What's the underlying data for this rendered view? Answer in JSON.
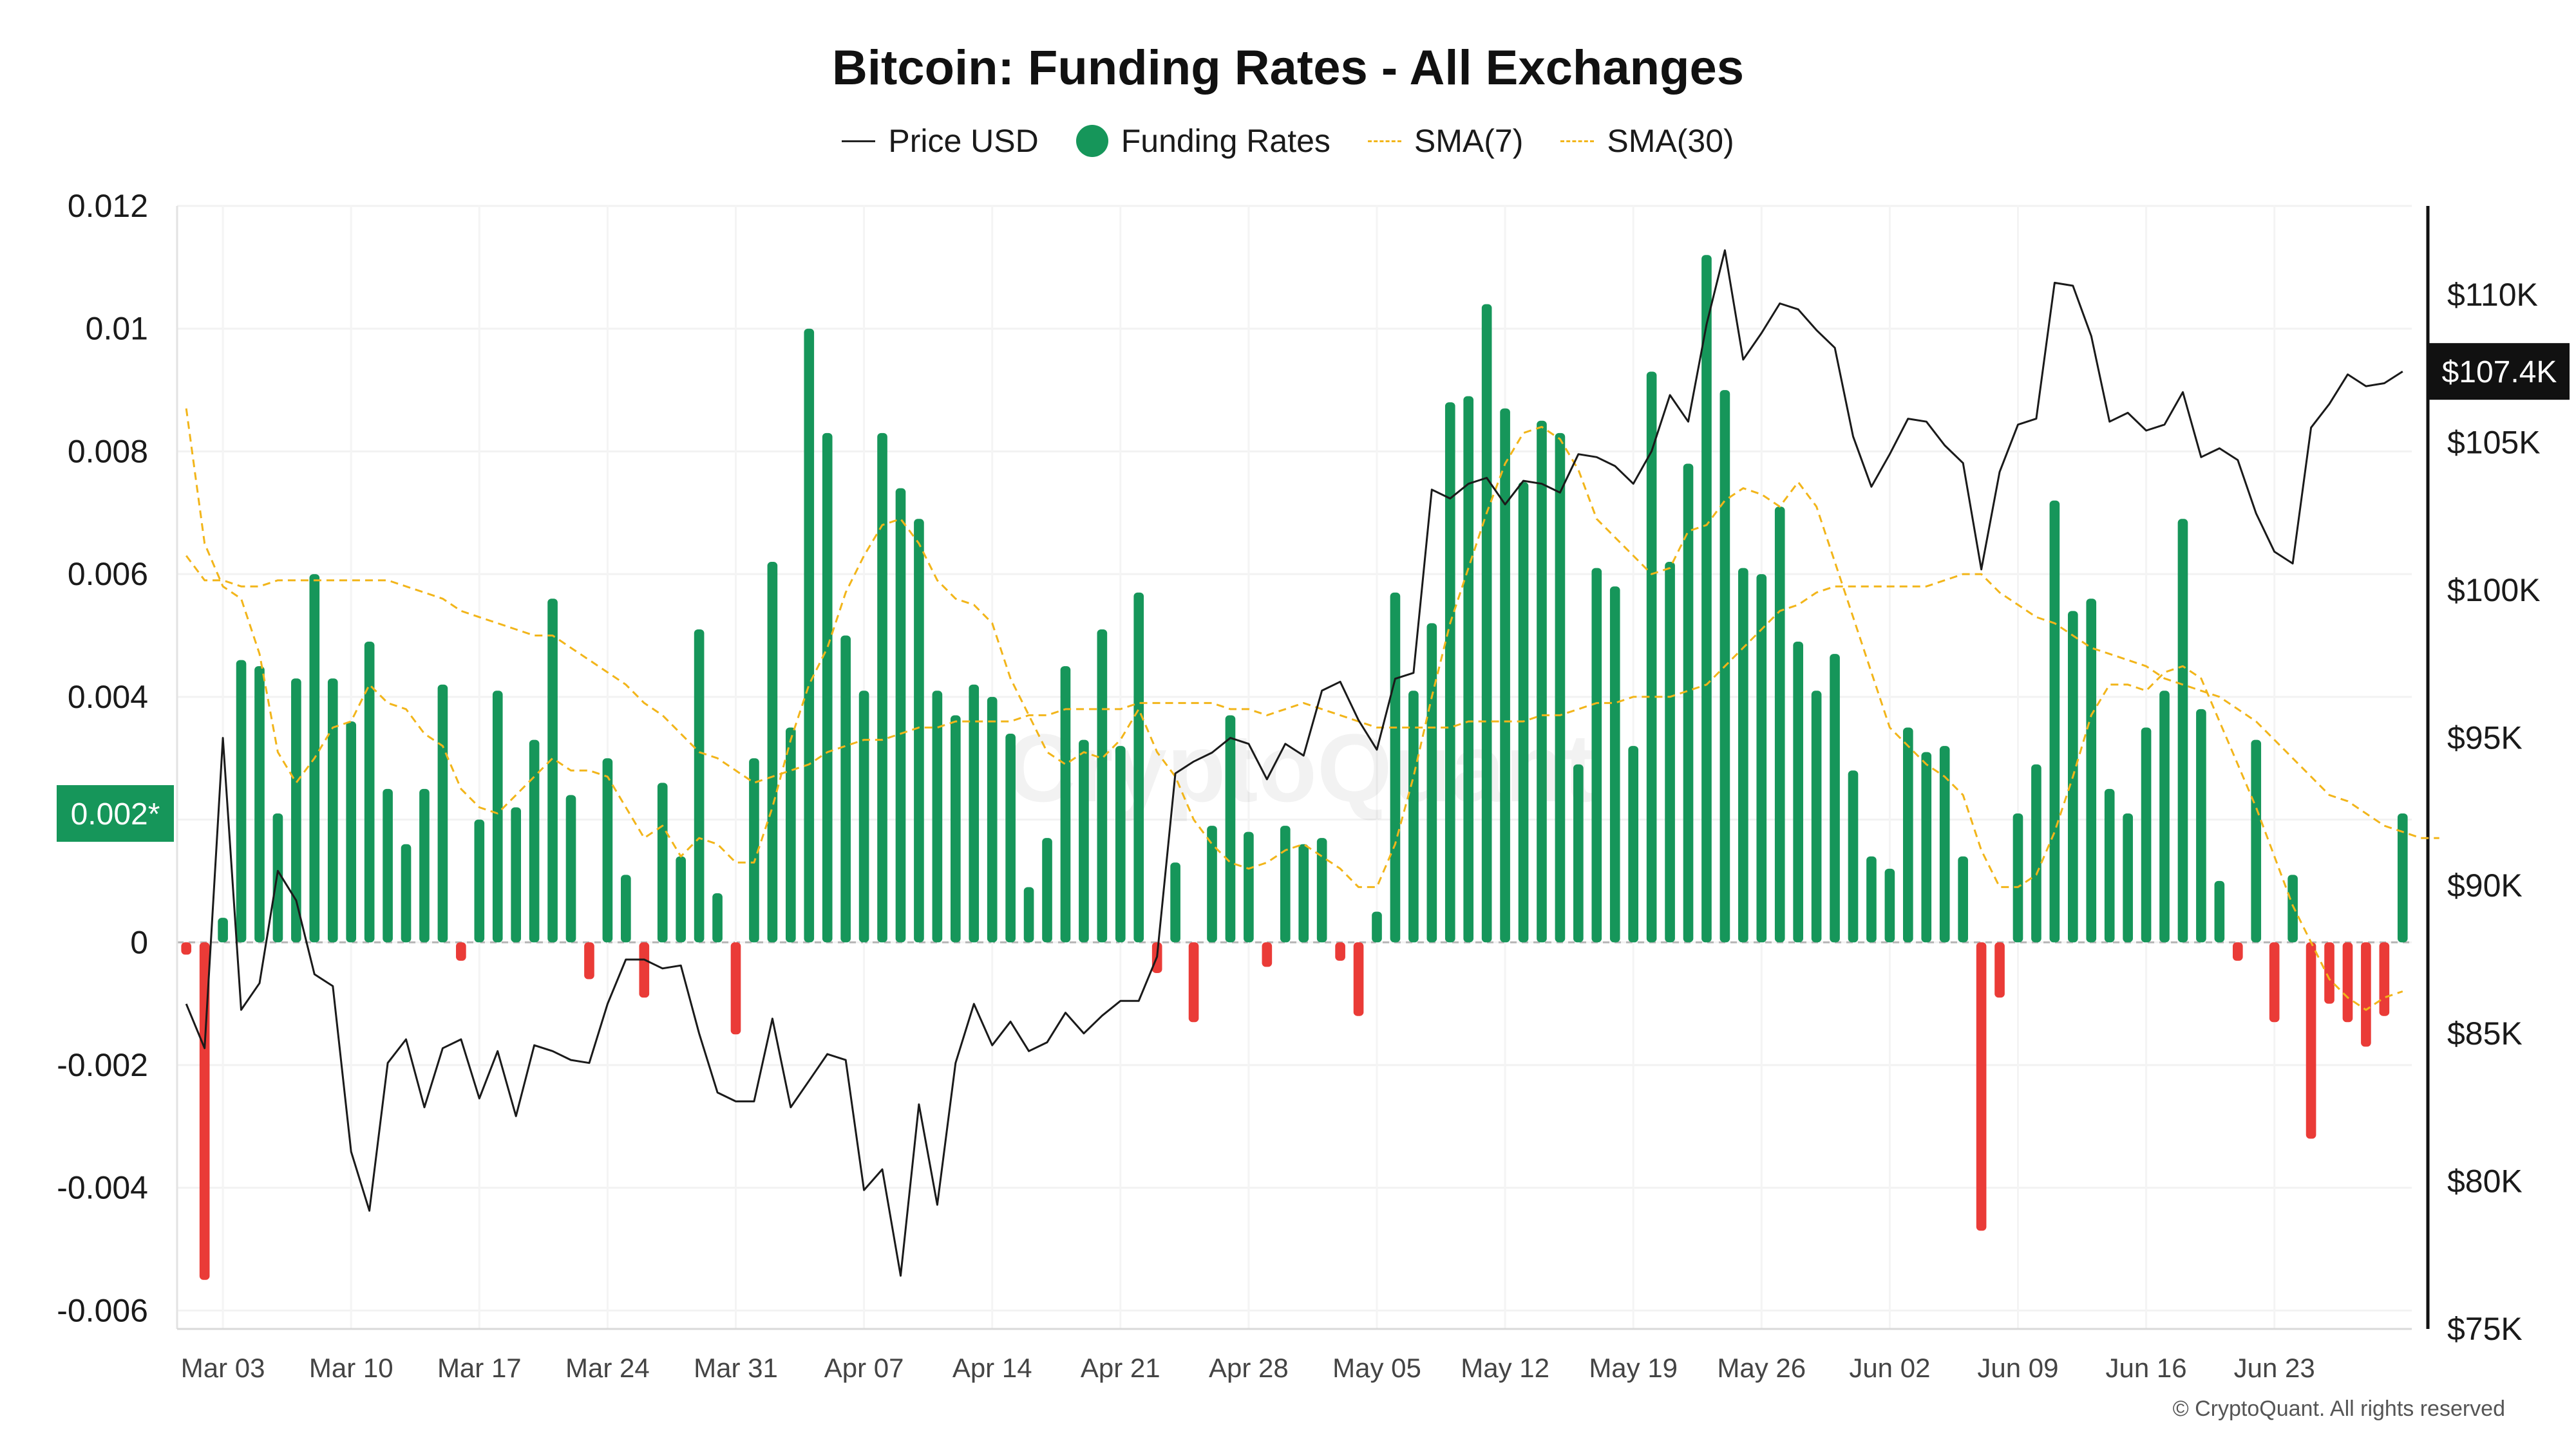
{
  "chart_data": {
    "type": "bar",
    "title": "Bitcoin: Funding Rates - All Exchanges",
    "legend": [
      {
        "name": "Price USD",
        "style": "line",
        "color": "#222222"
      },
      {
        "name": "Funding Rates",
        "style": "dot",
        "color": "#16965a"
      },
      {
        "name": "SMA(7)",
        "style": "dash",
        "color": "#f2b51a"
      },
      {
        "name": "SMA(30)",
        "style": "dash",
        "color": "#f2b51a"
      }
    ],
    "x_ticks": [
      "Mar 03",
      "Mar 10",
      "Mar 17",
      "Mar 24",
      "Mar 31",
      "Apr 07",
      "Apr 14",
      "Apr 21",
      "Apr 28",
      "May 05",
      "May 12",
      "May 19",
      "May 26",
      "Jun 02",
      "Jun 09",
      "Jun 16",
      "Jun 23"
    ],
    "y_left": {
      "ticks": [
        "0.012",
        "0.01",
        "0.008",
        "0.006",
        "0.004",
        "0.002*",
        "0",
        "-0.002",
        "-0.004",
        "-0.006"
      ],
      "range": [
        -0.0063,
        0.012
      ]
    },
    "y_right": {
      "ticks": [
        "$110K",
        "$105K",
        "$100K",
        "$95K",
        "$90K",
        "$85K",
        "$80K",
        "$75K"
      ],
      "range": [
        75000,
        113000
      ]
    },
    "current_price_label": "$107.4K",
    "current_funding_label": "0.002*",
    "day_start": "Mar 01",
    "funding_rates": [
      -0.0002,
      -0.0055,
      0.0004,
      0.0046,
      0.0045,
      0.0021,
      0.0043,
      0.006,
      0.0043,
      0.0036,
      0.0049,
      0.0025,
      0.0016,
      0.0025,
      0.0042,
      -0.0003,
      0.002,
      0.0041,
      0.0022,
      0.0033,
      0.0056,
      0.0024,
      -0.0006,
      0.003,
      0.0011,
      -0.0009,
      0.0026,
      0.0014,
      0.0051,
      0.0008,
      -0.0015,
      0.003,
      0.0062,
      0.0035,
      0.01,
      0.0083,
      0.005,
      0.0041,
      0.0083,
      0.0074,
      0.0069,
      0.0041,
      0.0037,
      0.0042,
      0.004,
      0.0034,
      0.0009,
      0.0017,
      0.0045,
      0.0033,
      0.0051,
      0.0032,
      0.0057,
      -0.0005,
      0.0013,
      -0.0013,
      0.0019,
      0.0037,
      0.0018,
      -0.0004,
      0.0019,
      0.0016,
      0.0017,
      -0.0003,
      -0.0012,
      0.0005,
      0.0057,
      0.0041,
      0.0052,
      0.0088,
      0.0089,
      0.0104,
      0.0087,
      0.0075,
      0.0085,
      0.0083,
      0.0029,
      0.0061,
      0.0058,
      0.0032,
      0.0093,
      0.0062,
      0.0078,
      0.0112,
      0.009,
      0.0061,
      0.006,
      0.0071,
      0.0049,
      0.0041,
      0.0047,
      0.0028,
      0.0014,
      0.0012,
      0.0035,
      0.0031,
      0.0032,
      0.0014,
      -0.0047,
      -0.0009,
      0.0021,
      0.0029,
      0.0072,
      0.0054,
      0.0056,
      0.0025,
      0.0021,
      0.0035,
      0.0041,
      0.0069,
      0.0038,
      0.001,
      -0.0003,
      0.0033,
      -0.0013,
      0.0011,
      -0.0032,
      -0.001,
      -0.0013,
      -0.0017,
      -0.0012,
      0.0021
    ],
    "price_usd": [
      86000,
      84500,
      95000,
      85800,
      86700,
      90500,
      89500,
      87000,
      86600,
      81000,
      79000,
      84000,
      84800,
      82500,
      84500,
      84800,
      82800,
      84400,
      82200,
      84600,
      84400,
      84100,
      84000,
      86000,
      87500,
      87500,
      87200,
      87300,
      85000,
      83000,
      82700,
      82700,
      85500,
      82500,
      83400,
      84300,
      84100,
      79700,
      80400,
      76800,
      82600,
      79200,
      84000,
      86000,
      84600,
      85400,
      84400,
      84700,
      85700,
      85000,
      85600,
      86100,
      86100,
      87600,
      93800,
      94200,
      94500,
      95000,
      94800,
      93600,
      94800,
      94400,
      96600,
      96900,
      95600,
      94600,
      97000,
      97200,
      103400,
      103100,
      103600,
      103800,
      102900,
      103700,
      103600,
      103300,
      104600,
      104500,
      104200,
      103600,
      104700,
      106600,
      105700,
      109000,
      111500,
      107800,
      108700,
      109700,
      109500,
      108800,
      108200,
      105200,
      103500,
      104600,
      105800,
      105700,
      104900,
      104300,
      100700,
      104000,
      105600,
      105800,
      110400,
      110300,
      108600,
      105700,
      106000,
      105400,
      105600,
      106700,
      104500,
      104800,
      104400,
      102600,
      101300,
      100900,
      105500,
      106300,
      107300,
      106900,
      107000,
      107400
    ],
    "sma7": [
      0.0087,
      0.0065,
      0.0058,
      0.0056,
      0.0047,
      0.0031,
      0.0026,
      0.003,
      0.0035,
      0.0036,
      0.0042,
      0.0039,
      0.0038,
      0.0034,
      0.0032,
      0.0025,
      0.0022,
      0.0021,
      0.0024,
      0.0027,
      0.003,
      0.0028,
      0.0028,
      0.0027,
      0.0022,
      0.0017,
      0.0019,
      0.0014,
      0.0017,
      0.0016,
      0.0013,
      0.0013,
      0.0022,
      0.0033,
      0.0042,
      0.0048,
      0.0057,
      0.0063,
      0.0068,
      0.0069,
      0.0065,
      0.0059,
      0.0056,
      0.0055,
      0.0052,
      0.0043,
      0.0037,
      0.0031,
      0.0029,
      0.0031,
      0.003,
      0.0033,
      0.0038,
      0.0031,
      0.0027,
      0.002,
      0.0016,
      0.0013,
      0.0012,
      0.0013,
      0.0015,
      0.0016,
      0.0014,
      0.0012,
      0.0009,
      0.0009,
      0.0016,
      0.0027,
      0.004,
      0.0052,
      0.0061,
      0.007,
      0.0078,
      0.0083,
      0.0084,
      0.0082,
      0.0077,
      0.0069,
      0.0066,
      0.0063,
      0.006,
      0.0061,
      0.0067,
      0.0068,
      0.0072,
      0.0074,
      0.0073,
      0.0071,
      0.0075,
      0.0071,
      0.0062,
      0.0053,
      0.0044,
      0.0035,
      0.0032,
      0.0029,
      0.0027,
      0.0024,
      0.0015,
      0.0009,
      0.0009,
      0.0011,
      0.0018,
      0.0027,
      0.0037,
      0.0042,
      0.0042,
      0.0041,
      0.0044,
      0.0045,
      0.0043,
      0.0036,
      0.0029,
      0.0022,
      0.0014,
      0.0006,
      0.0,
      -0.0006,
      -0.0009,
      -0.0011,
      -0.0009,
      -0.0008
    ],
    "sma30": [
      0.0063,
      0.0059,
      0.0059,
      0.0058,
      0.0058,
      0.0059,
      0.0059,
      0.0059,
      0.0059,
      0.0059,
      0.0059,
      0.0059,
      0.0058,
      0.0057,
      0.0056,
      0.0054,
      0.0053,
      0.0052,
      0.0051,
      0.005,
      0.005,
      0.0048,
      0.0046,
      0.0044,
      0.0042,
      0.0039,
      0.0037,
      0.0034,
      0.0031,
      0.003,
      0.0028,
      0.0026,
      0.0027,
      0.0028,
      0.0029,
      0.0031,
      0.0032,
      0.0033,
      0.0033,
      0.0034,
      0.0035,
      0.0035,
      0.0036,
      0.0036,
      0.0036,
      0.0036,
      0.0037,
      0.0037,
      0.0038,
      0.0038,
      0.0038,
      0.0038,
      0.0039,
      0.0039,
      0.0039,
      0.0039,
      0.0039,
      0.0038,
      0.0038,
      0.0037,
      0.0038,
      0.0039,
      0.0038,
      0.0037,
      0.0036,
      0.0035,
      0.0035,
      0.0035,
      0.0035,
      0.0035,
      0.0036,
      0.0036,
      0.0036,
      0.0036,
      0.0037,
      0.0037,
      0.0038,
      0.0039,
      0.0039,
      0.004,
      0.004,
      0.004,
      0.0041,
      0.0042,
      0.0045,
      0.0048,
      0.0051,
      0.0054,
      0.0055,
      0.0057,
      0.0058,
      0.0058,
      0.0058,
      0.0058,
      0.0058,
      0.0058,
      0.0059,
      0.006,
      0.006,
      0.0057,
      0.0055,
      0.0053,
      0.0052,
      0.005,
      0.0048,
      0.0047,
      0.0046,
      0.0045,
      0.0043,
      0.0042,
      0.0041,
      0.004,
      0.0038,
      0.0036,
      0.0033,
      0.003,
      0.0027,
      0.0024,
      0.0023,
      0.0021,
      0.0019,
      0.0018,
      0.0017,
      0.0017
    ],
    "watermark": "CryptoQuant"
  },
  "copyright": "© CryptoQuant. All rights reserved"
}
